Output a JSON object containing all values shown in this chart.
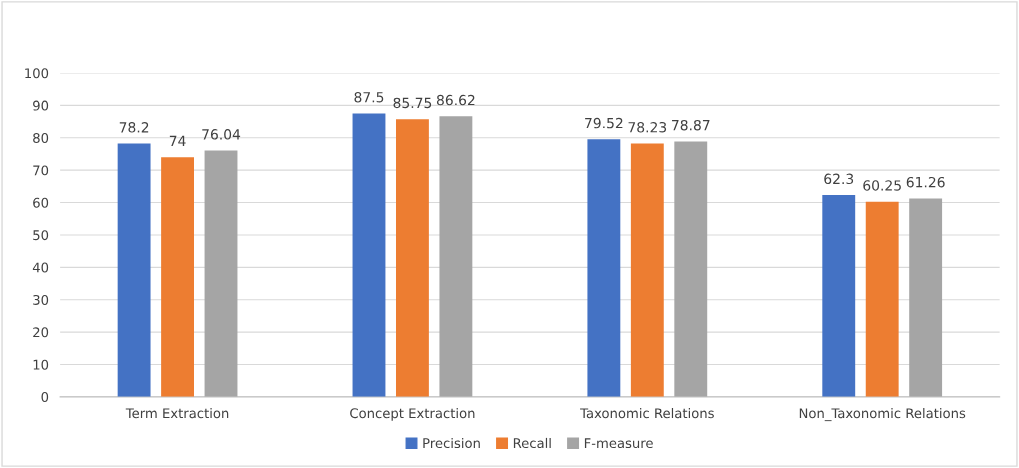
{
  "chart_data": {
    "type": "bar",
    "categories": [
      "Term Extraction",
      "Concept Extraction",
      "Taxonomic Relations",
      "Non_Taxonomic Relations"
    ],
    "series": [
      {
        "name": "Precision",
        "color": "#4472c4",
        "values": [
          78.2,
          87.5,
          79.52,
          62.3
        ]
      },
      {
        "name": "Recall",
        "color": "#ed7d31",
        "values": [
          74,
          85.75,
          78.23,
          60.25
        ]
      },
      {
        "name": "F-measure",
        "color": "#a5a5a5",
        "values": [
          76.04,
          86.62,
          78.87,
          61.26
        ]
      }
    ],
    "ylim": [
      0,
      100
    ],
    "yticks": [
      0,
      10,
      20,
      30,
      40,
      50,
      60,
      70,
      80,
      90,
      100
    ],
    "grid": "y",
    "legend": "bottom",
    "data_labels": true
  }
}
